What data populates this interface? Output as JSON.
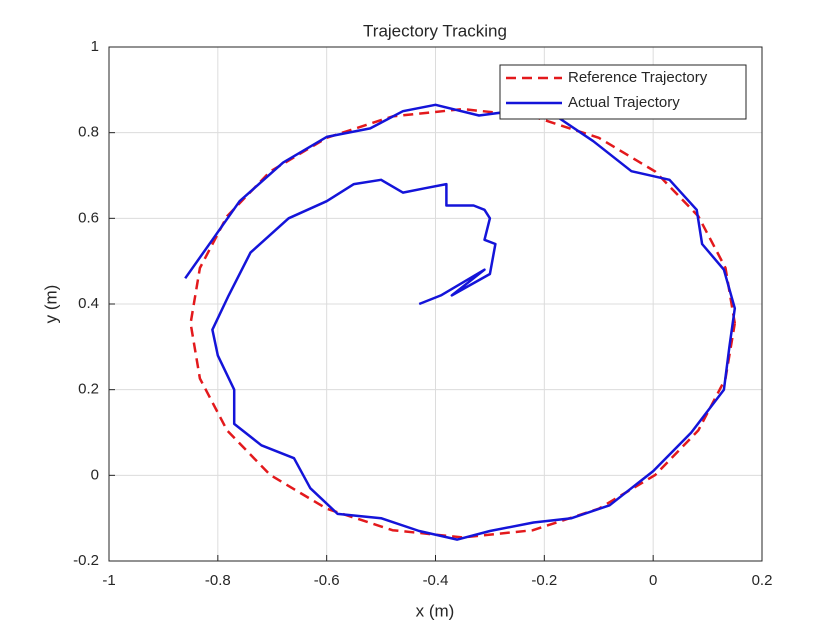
{
  "chart_data": {
    "type": "line",
    "title": "Trajectory Tracking",
    "x_label": "x (m)",
    "y_label": "y (m)",
    "xlim": [
      -1,
      0.2
    ],
    "ylim": [
      -0.2,
      1
    ],
    "xticks": [
      -1,
      -0.8,
      -0.6,
      -0.4,
      -0.2,
      0,
      0.2
    ],
    "yticks": [
      -0.2,
      0,
      0.2,
      0.4,
      0.6,
      0.8,
      1
    ],
    "grid": true,
    "legend": "northeast",
    "series": [
      {
        "name": "Reference Trajectory",
        "color": "#e3191c",
        "dashed": true,
        "x": [
          0.15,
          0.133,
          0.083,
          0.004,
          -0.1,
          -0.221,
          -0.35,
          -0.479,
          -0.6,
          -0.704,
          -0.783,
          -0.833,
          -0.85,
          -0.833,
          -0.783,
          -0.704,
          -0.6,
          -0.479,
          -0.35,
          -0.221,
          -0.1,
          0.004,
          0.083,
          0.133,
          0.15
        ],
        "y": [
          0.355,
          0.484,
          0.605,
          0.709,
          0.788,
          0.838,
          0.855,
          0.838,
          0.788,
          0.709,
          0.605,
          0.484,
          0.355,
          0.226,
          0.105,
          0.001,
          -0.078,
          -0.128,
          -0.145,
          -0.128,
          -0.078,
          0.001,
          0.105,
          0.226,
          0.355
        ]
      },
      {
        "name": "Actual Trajectory",
        "color": "#1414d9",
        "dashed": false,
        "x": [
          -0.43,
          -0.39,
          -0.31,
          -0.37,
          -0.3,
          -0.29,
          -0.31,
          -0.3,
          -0.31,
          -0.33,
          -0.38,
          -0.38,
          -0.42,
          -0.46,
          -0.5,
          -0.55,
          -0.6,
          -0.67,
          -0.74,
          -0.78,
          -0.81,
          -0.8,
          -0.77,
          -0.77,
          -0.72,
          -0.66,
          -0.63,
          -0.58,
          -0.5,
          -0.43,
          -0.36,
          -0.3,
          -0.22,
          -0.15,
          -0.08,
          0,
          0.07,
          0.13,
          0.14,
          0.15,
          0.13,
          0.09,
          0.08,
          0.03,
          -0.04,
          -0.11,
          -0.18,
          -0.26,
          -0.32,
          -0.4,
          -0.46,
          -0.52,
          -0.6,
          -0.68,
          -0.76,
          -0.81,
          -0.86
        ],
        "y": [
          0.4,
          0.42,
          0.48,
          0.42,
          0.47,
          0.54,
          0.55,
          0.6,
          0.62,
          0.63,
          0.63,
          0.68,
          0.67,
          0.66,
          0.69,
          0.68,
          0.64,
          0.6,
          0.52,
          0.42,
          0.34,
          0.28,
          0.2,
          0.12,
          0.07,
          0.04,
          -0.03,
          -0.09,
          -0.1,
          -0.13,
          -0.15,
          -0.13,
          -0.11,
          -0.1,
          -0.07,
          0.01,
          0.1,
          0.2,
          0.3,
          0.39,
          0.48,
          0.54,
          0.62,
          0.69,
          0.71,
          0.78,
          0.84,
          0.85,
          0.84,
          0.865,
          0.85,
          0.81,
          0.79,
          0.73,
          0.64,
          0.55,
          0.46
        ]
      }
    ]
  }
}
